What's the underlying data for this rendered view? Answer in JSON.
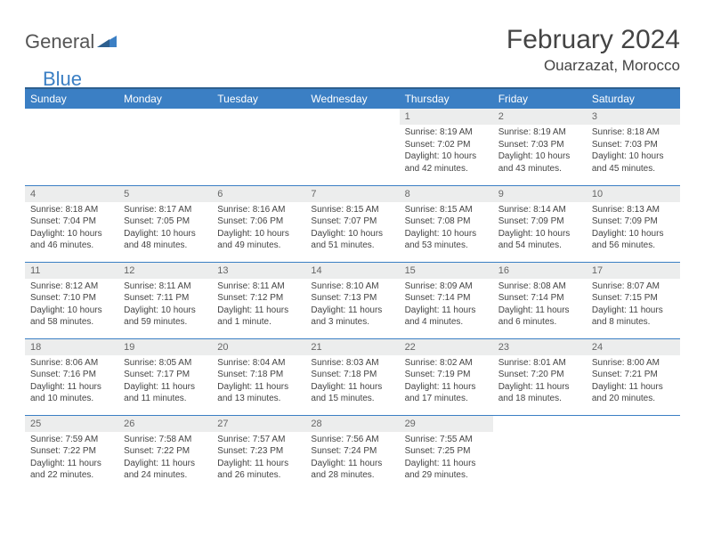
{
  "logo": {
    "part1": "General",
    "part2": "Blue"
  },
  "title": "February 2024",
  "location": "Ouarzazat, Morocco",
  "colors": {
    "header_bg": "#3b7fc4",
    "header_border": "#2d5f8f",
    "daynum_bg": "#eceded",
    "divider": "#3b7fc4",
    "text": "#444444",
    "text_muted": "#666666"
  },
  "weekdays": [
    "Sunday",
    "Monday",
    "Tuesday",
    "Wednesday",
    "Thursday",
    "Friday",
    "Saturday"
  ],
  "weeks": [
    [
      null,
      null,
      null,
      null,
      {
        "n": "1",
        "sunrise": "Sunrise: 8:19 AM",
        "sunset": "Sunset: 7:02 PM",
        "d1": "Daylight: 10 hours",
        "d2": "and 42 minutes."
      },
      {
        "n": "2",
        "sunrise": "Sunrise: 8:19 AM",
        "sunset": "Sunset: 7:03 PM",
        "d1": "Daylight: 10 hours",
        "d2": "and 43 minutes."
      },
      {
        "n": "3",
        "sunrise": "Sunrise: 8:18 AM",
        "sunset": "Sunset: 7:03 PM",
        "d1": "Daylight: 10 hours",
        "d2": "and 45 minutes."
      }
    ],
    [
      {
        "n": "4",
        "sunrise": "Sunrise: 8:18 AM",
        "sunset": "Sunset: 7:04 PM",
        "d1": "Daylight: 10 hours",
        "d2": "and 46 minutes."
      },
      {
        "n": "5",
        "sunrise": "Sunrise: 8:17 AM",
        "sunset": "Sunset: 7:05 PM",
        "d1": "Daylight: 10 hours",
        "d2": "and 48 minutes."
      },
      {
        "n": "6",
        "sunrise": "Sunrise: 8:16 AM",
        "sunset": "Sunset: 7:06 PM",
        "d1": "Daylight: 10 hours",
        "d2": "and 49 minutes."
      },
      {
        "n": "7",
        "sunrise": "Sunrise: 8:15 AM",
        "sunset": "Sunset: 7:07 PM",
        "d1": "Daylight: 10 hours",
        "d2": "and 51 minutes."
      },
      {
        "n": "8",
        "sunrise": "Sunrise: 8:15 AM",
        "sunset": "Sunset: 7:08 PM",
        "d1": "Daylight: 10 hours",
        "d2": "and 53 minutes."
      },
      {
        "n": "9",
        "sunrise": "Sunrise: 8:14 AM",
        "sunset": "Sunset: 7:09 PM",
        "d1": "Daylight: 10 hours",
        "d2": "and 54 minutes."
      },
      {
        "n": "10",
        "sunrise": "Sunrise: 8:13 AM",
        "sunset": "Sunset: 7:09 PM",
        "d1": "Daylight: 10 hours",
        "d2": "and 56 minutes."
      }
    ],
    [
      {
        "n": "11",
        "sunrise": "Sunrise: 8:12 AM",
        "sunset": "Sunset: 7:10 PM",
        "d1": "Daylight: 10 hours",
        "d2": "and 58 minutes."
      },
      {
        "n": "12",
        "sunrise": "Sunrise: 8:11 AM",
        "sunset": "Sunset: 7:11 PM",
        "d1": "Daylight: 10 hours",
        "d2": "and 59 minutes."
      },
      {
        "n": "13",
        "sunrise": "Sunrise: 8:11 AM",
        "sunset": "Sunset: 7:12 PM",
        "d1": "Daylight: 11 hours",
        "d2": "and 1 minute."
      },
      {
        "n": "14",
        "sunrise": "Sunrise: 8:10 AM",
        "sunset": "Sunset: 7:13 PM",
        "d1": "Daylight: 11 hours",
        "d2": "and 3 minutes."
      },
      {
        "n": "15",
        "sunrise": "Sunrise: 8:09 AM",
        "sunset": "Sunset: 7:14 PM",
        "d1": "Daylight: 11 hours",
        "d2": "and 4 minutes."
      },
      {
        "n": "16",
        "sunrise": "Sunrise: 8:08 AM",
        "sunset": "Sunset: 7:14 PM",
        "d1": "Daylight: 11 hours",
        "d2": "and 6 minutes."
      },
      {
        "n": "17",
        "sunrise": "Sunrise: 8:07 AM",
        "sunset": "Sunset: 7:15 PM",
        "d1": "Daylight: 11 hours",
        "d2": "and 8 minutes."
      }
    ],
    [
      {
        "n": "18",
        "sunrise": "Sunrise: 8:06 AM",
        "sunset": "Sunset: 7:16 PM",
        "d1": "Daylight: 11 hours",
        "d2": "and 10 minutes."
      },
      {
        "n": "19",
        "sunrise": "Sunrise: 8:05 AM",
        "sunset": "Sunset: 7:17 PM",
        "d1": "Daylight: 11 hours",
        "d2": "and 11 minutes."
      },
      {
        "n": "20",
        "sunrise": "Sunrise: 8:04 AM",
        "sunset": "Sunset: 7:18 PM",
        "d1": "Daylight: 11 hours",
        "d2": "and 13 minutes."
      },
      {
        "n": "21",
        "sunrise": "Sunrise: 8:03 AM",
        "sunset": "Sunset: 7:18 PM",
        "d1": "Daylight: 11 hours",
        "d2": "and 15 minutes."
      },
      {
        "n": "22",
        "sunrise": "Sunrise: 8:02 AM",
        "sunset": "Sunset: 7:19 PM",
        "d1": "Daylight: 11 hours",
        "d2": "and 17 minutes."
      },
      {
        "n": "23",
        "sunrise": "Sunrise: 8:01 AM",
        "sunset": "Sunset: 7:20 PM",
        "d1": "Daylight: 11 hours",
        "d2": "and 18 minutes."
      },
      {
        "n": "24",
        "sunrise": "Sunrise: 8:00 AM",
        "sunset": "Sunset: 7:21 PM",
        "d1": "Daylight: 11 hours",
        "d2": "and 20 minutes."
      }
    ],
    [
      {
        "n": "25",
        "sunrise": "Sunrise: 7:59 AM",
        "sunset": "Sunset: 7:22 PM",
        "d1": "Daylight: 11 hours",
        "d2": "and 22 minutes."
      },
      {
        "n": "26",
        "sunrise": "Sunrise: 7:58 AM",
        "sunset": "Sunset: 7:22 PM",
        "d1": "Daylight: 11 hours",
        "d2": "and 24 minutes."
      },
      {
        "n": "27",
        "sunrise": "Sunrise: 7:57 AM",
        "sunset": "Sunset: 7:23 PM",
        "d1": "Daylight: 11 hours",
        "d2": "and 26 minutes."
      },
      {
        "n": "28",
        "sunrise": "Sunrise: 7:56 AM",
        "sunset": "Sunset: 7:24 PM",
        "d1": "Daylight: 11 hours",
        "d2": "and 28 minutes."
      },
      {
        "n": "29",
        "sunrise": "Sunrise: 7:55 AM",
        "sunset": "Sunset: 7:25 PM",
        "d1": "Daylight: 11 hours",
        "d2": "and 29 minutes."
      },
      null,
      null
    ]
  ]
}
